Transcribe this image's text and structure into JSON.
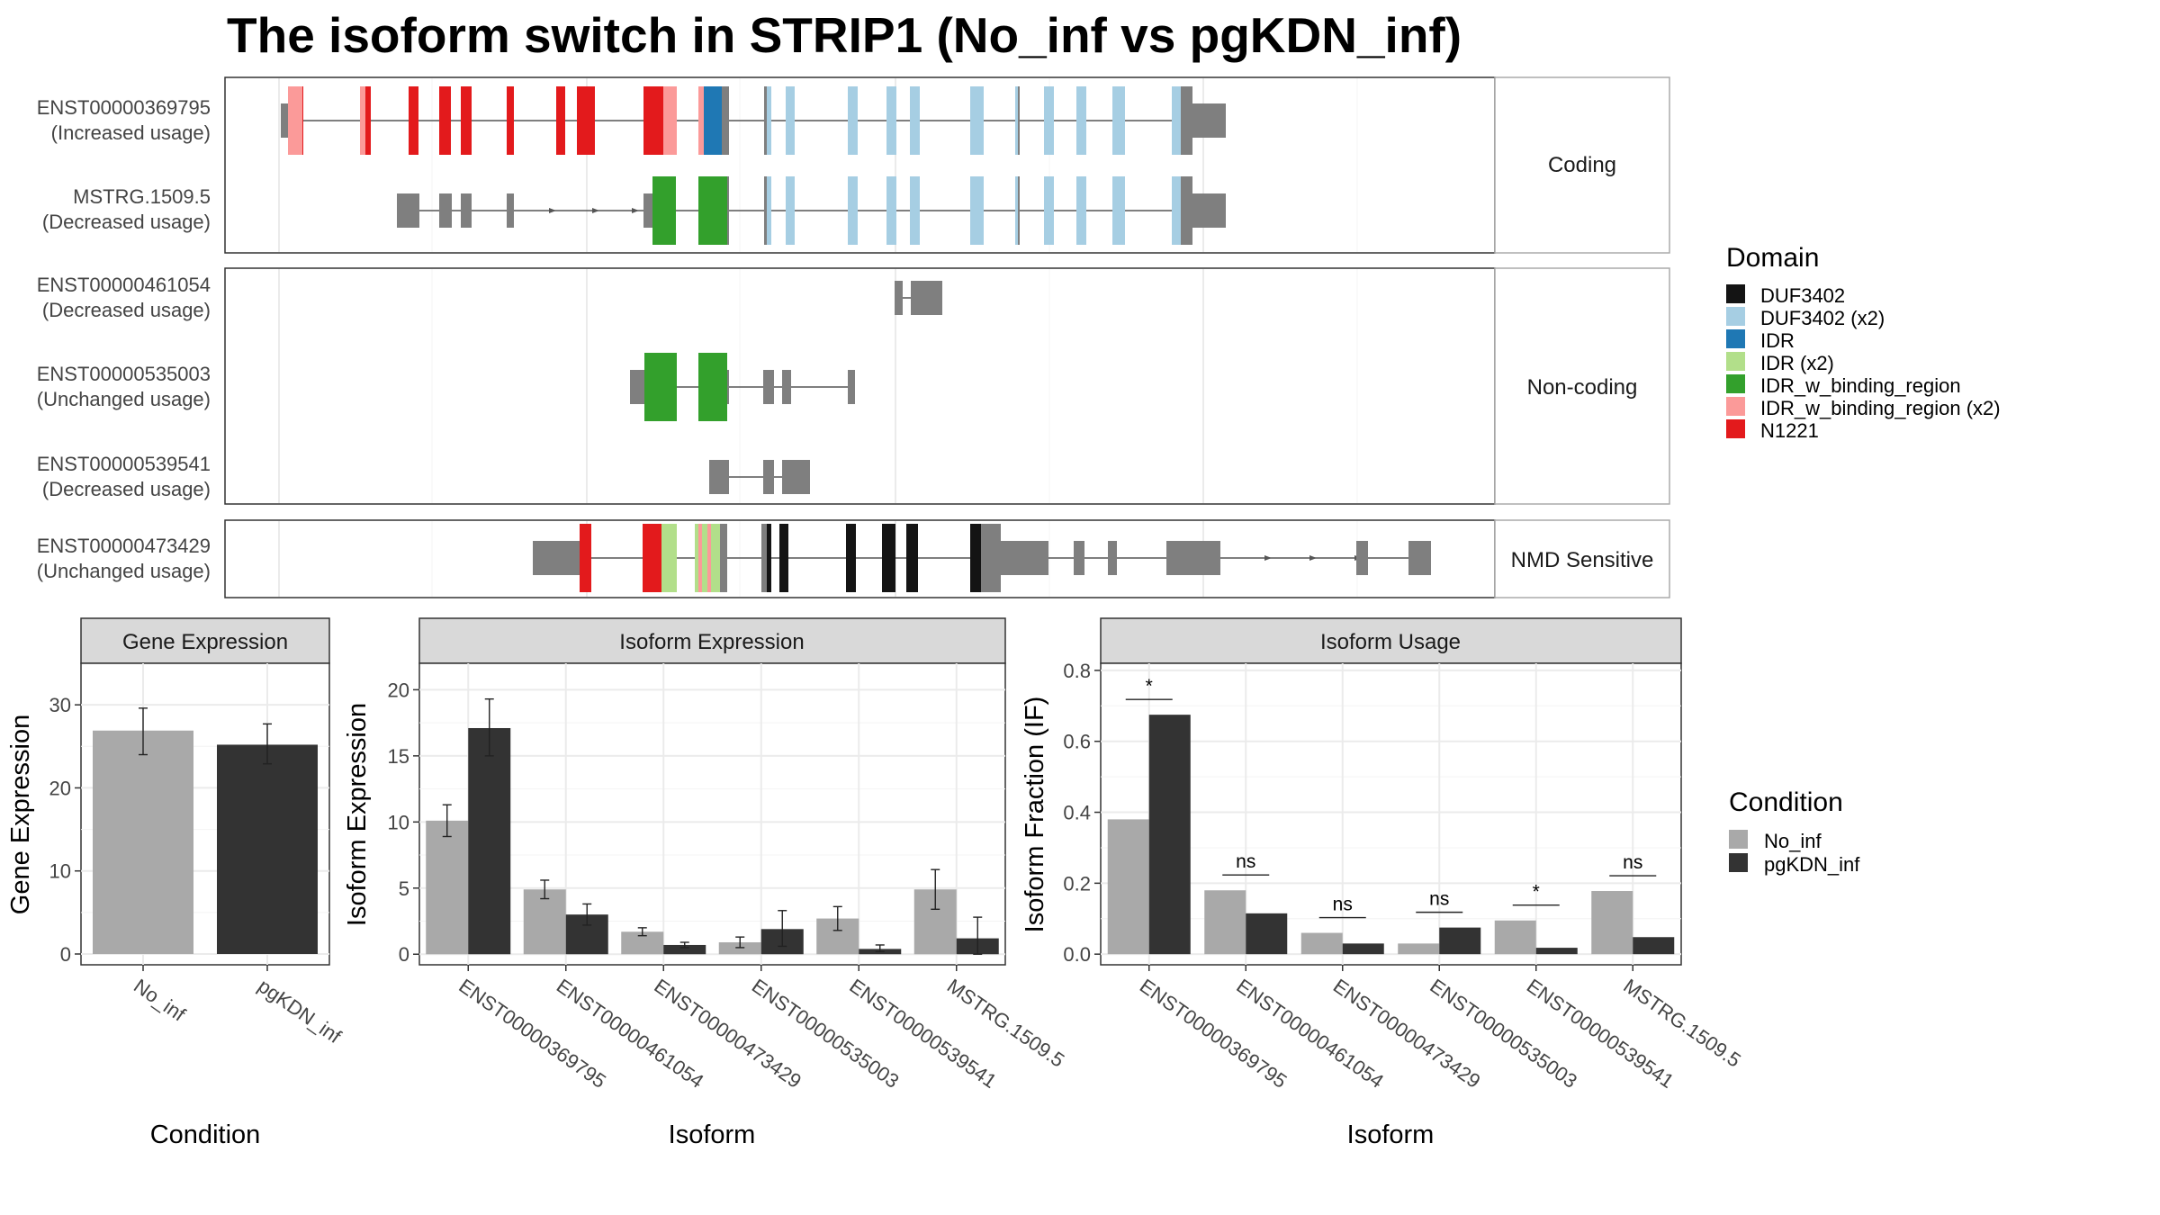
{
  "title": "The isoform switch in STRIP1 (No_inf vs pgKDN_inf)",
  "structure": {
    "isoforms": [
      {
        "id": "ENST00000369795",
        "usage": "(Increased usage)"
      },
      {
        "id": "MSTRG.1509.5",
        "usage": "(Decreased usage)"
      },
      {
        "id": "ENST00000461054",
        "usage": "(Decreased usage)"
      },
      {
        "id": "ENST00000535003",
        "usage": "(Unchanged usage)"
      },
      {
        "id": "ENST00000539541",
        "usage": "(Decreased usage)"
      },
      {
        "id": "ENST00000473429",
        "usage": "(Unchanged usage)"
      }
    ],
    "categories": [
      "Coding",
      "Non-coding",
      "NMD Sensitive"
    ]
  },
  "legends": {
    "domain_title": "Domain",
    "domains": [
      {
        "label": "DUF3402",
        "color": "#141414"
      },
      {
        "label": "DUF3402 (x2)",
        "color": "#a6cee3"
      },
      {
        "label": "IDR",
        "color": "#1f78b4"
      },
      {
        "label": "IDR (x2)",
        "color": "#b2df8a"
      },
      {
        "label": "IDR_w_binding_region",
        "color": "#33a02c"
      },
      {
        "label": "IDR_w_binding_region (x2)",
        "color": "#fb9a99"
      },
      {
        "label": "N1221",
        "color": "#e31a1c"
      }
    ],
    "condition_title": "Condition",
    "conditions": [
      {
        "label": "No_inf",
        "color": "#a9a9a9"
      },
      {
        "label": "pgKDN_inf",
        "color": "#333333"
      }
    ]
  },
  "chart_data": [
    {
      "type": "bar",
      "title": "Gene Expression",
      "xlabel": "Condition",
      "ylabel": "Gene Expression",
      "categories": [
        "No_inf",
        "pgKDN_inf"
      ],
      "values": [
        26.9,
        25.2
      ],
      "error": [
        [
          24.0,
          29.6
        ],
        [
          22.9,
          27.7
        ]
      ],
      "colors": [
        "#a9a9a9",
        "#333333"
      ],
      "ylim": [
        -1.3,
        35
      ],
      "yticks": [
        0,
        10,
        20,
        30
      ]
    },
    {
      "type": "bar",
      "title": "Isoform Expression",
      "xlabel": "Isoform",
      "ylabel": "Isoform Expression",
      "categories": [
        "ENST00000369795",
        "ENST00000461054",
        "ENST00000473429",
        "ENST00000535003",
        "ENST00000539541",
        "MSTRG.1509.5"
      ],
      "series": [
        {
          "name": "No_inf",
          "color": "#a9a9a9",
          "values": [
            10.1,
            4.9,
            1.7,
            0.9,
            2.7,
            4.9
          ],
          "error": [
            [
              8.9,
              11.3
            ],
            [
              4.2,
              5.6
            ],
            [
              1.4,
              2.0
            ],
            [
              0.5,
              1.3
            ],
            [
              1.8,
              3.6
            ],
            [
              3.4,
              6.4
            ]
          ]
        },
        {
          "name": "pgKDN_inf",
          "color": "#333333",
          "values": [
            17.1,
            3.0,
            0.7,
            1.9,
            0.4,
            1.2
          ],
          "error": [
            [
              15.0,
              19.3
            ],
            [
              2.2,
              3.8
            ],
            [
              0.5,
              0.9
            ],
            [
              0.6,
              3.3
            ],
            [
              0.2,
              0.7
            ],
            [
              0.0,
              2.8
            ]
          ]
        }
      ],
      "ylim": [
        -0.8,
        22
      ],
      "yticks": [
        0,
        5,
        10,
        15,
        20
      ]
    },
    {
      "type": "bar",
      "title": "Isoform Usage",
      "xlabel": "Isoform",
      "ylabel": "Isoform Fraction (IF)",
      "categories": [
        "ENST00000369795",
        "ENST00000461054",
        "ENST00000473429",
        "ENST00000535003",
        "ENST00000539541",
        "MSTRG.1509.5"
      ],
      "series": [
        {
          "name": "No_inf",
          "color": "#a9a9a9",
          "values": [
            0.38,
            0.18,
            0.06,
            0.03,
            0.095,
            0.178
          ]
        },
        {
          "name": "pgKDN_inf",
          "color": "#333333",
          "values": [
            0.675,
            0.115,
            0.03,
            0.075,
            0.018,
            0.048
          ]
        }
      ],
      "significance": [
        "*",
        "ns",
        "ns",
        "ns",
        "*",
        "ns"
      ],
      "ylim": [
        -0.03,
        0.82
      ],
      "yticks": [
        0.0,
        0.2,
        0.4,
        0.6,
        0.8
      ]
    }
  ]
}
